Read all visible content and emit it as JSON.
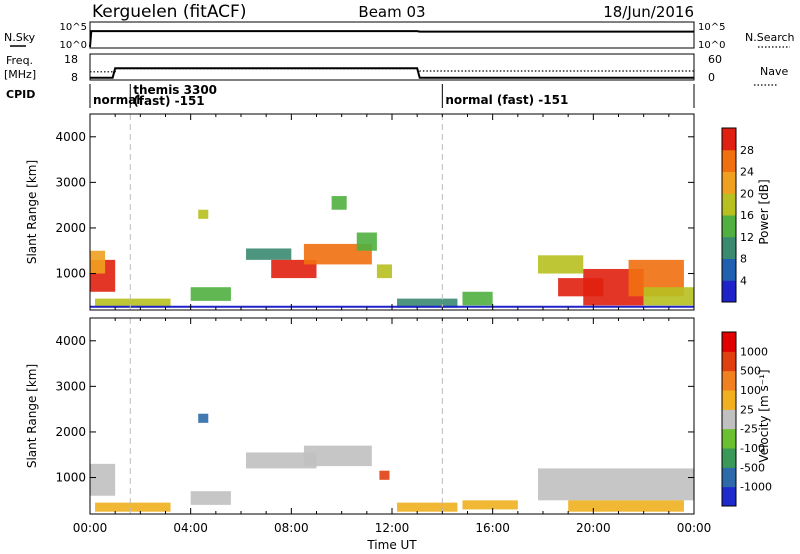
{
  "header": {
    "station": "Kerguelen (fitACF)",
    "beam": "Beam 03",
    "date": "18/Jun/2016"
  },
  "top_panels": {
    "nsky_label": "N.Sky",
    "nsky_ticks": [
      "10^5",
      "10^0"
    ],
    "nsearch_label": "N.Search",
    "nsearch_ticks": [
      "10^5",
      "10^0"
    ],
    "freq_label_line1": "Freq.",
    "freq_label_line2": "[MHz]",
    "freq_ticks": [
      "18",
      "8"
    ],
    "nave_label": "Nave",
    "nave_ticks": [
      "60",
      "0"
    ],
    "cpid_label": "CPID",
    "cpid_segments": [
      {
        "start_hour": 0.0,
        "lines": [
          "normal"
        ]
      },
      {
        "start_hour": 1.6,
        "lines": [
          "themis 3300",
          "(fast) -151"
        ]
      },
      {
        "start_hour": 14.0,
        "lines": [
          "normal (fast) -151"
        ]
      }
    ],
    "freq_series": [
      [
        0,
        8.5
      ],
      [
        0.9,
        8.5
      ],
      [
        1.0,
        12.5
      ],
      [
        13.0,
        12.5
      ],
      [
        13.1,
        8.5
      ],
      [
        24,
        8.5
      ]
    ],
    "nave_series": [
      [
        0,
        18
      ],
      [
        1.0,
        18
      ],
      [
        1.05,
        26
      ],
      [
        13.0,
        26
      ],
      [
        13.1,
        20
      ],
      [
        24,
        20
      ]
    ],
    "nsky_series": [
      [
        0,
        0.0
      ],
      [
        0.05,
        3.3
      ],
      [
        13.0,
        3.3
      ],
      [
        13.1,
        3.2
      ],
      [
        24,
        3.2
      ]
    ]
  },
  "chart_data": [
    {
      "type": "heatmap",
      "name": "power",
      "x_label": "",
      "y_label": "Slant Range [km]",
      "x_range": [
        0,
        24
      ],
      "y_range": [
        200,
        4500
      ],
      "y_ticks": [
        "1000",
        "2000",
        "3000",
        "4000"
      ],
      "colorbar_label": "Power [dB]",
      "colorbar_ticks": [
        "4",
        "8",
        "12",
        "16",
        "20",
        "24",
        "28"
      ],
      "colorbar_colors": [
        "#1e22c8",
        "#2060b0",
        "#3a8a70",
        "#50b040",
        "#b8c020",
        "#f0a020",
        "#f07010",
        "#e02010"
      ],
      "regions": [
        {
          "x": [
            0.0,
            1.0
          ],
          "y": [
            600,
            1300
          ],
          "level": 7
        },
        {
          "x": [
            0.0,
            0.6
          ],
          "y": [
            1000,
            1500
          ],
          "level": 5
        },
        {
          "x": [
            0.2,
            3.2
          ],
          "y": [
            250,
            450
          ],
          "level": 4
        },
        {
          "x": [
            4.0,
            5.6
          ],
          "y": [
            400,
            700
          ],
          "level": 3
        },
        {
          "x": [
            4.3,
            4.7
          ],
          "y": [
            2200,
            2400
          ],
          "level": 4
        },
        {
          "x": [
            6.2,
            8.0
          ],
          "y": [
            1300,
            1550
          ],
          "level": 2
        },
        {
          "x": [
            7.2,
            9.0
          ],
          "y": [
            900,
            1300
          ],
          "level": 7
        },
        {
          "x": [
            8.5,
            11.2
          ],
          "y": [
            1200,
            1650
          ],
          "level": 6
        },
        {
          "x": [
            10.6,
            11.4
          ],
          "y": [
            1500,
            1900
          ],
          "level": 3
        },
        {
          "x": [
            11.4,
            12.0
          ],
          "y": [
            900,
            1200
          ],
          "level": 4
        },
        {
          "x": [
            9.6,
            10.2
          ],
          "y": [
            2400,
            2700
          ],
          "level": 3
        },
        {
          "x": [
            12.2,
            14.6
          ],
          "y": [
            250,
            450
          ],
          "level": 2
        },
        {
          "x": [
            14.8,
            16.0
          ],
          "y": [
            300,
            600
          ],
          "level": 3
        },
        {
          "x": [
            17.8,
            19.6
          ],
          "y": [
            1000,
            1400
          ],
          "level": 4
        },
        {
          "x": [
            18.6,
            20.4
          ],
          "y": [
            500,
            900
          ],
          "level": 7
        },
        {
          "x": [
            19.6,
            22.0
          ],
          "y": [
            300,
            1100
          ],
          "level": 7
        },
        {
          "x": [
            21.4,
            23.6
          ],
          "y": [
            500,
            1300
          ],
          "level": 6
        },
        {
          "x": [
            22.0,
            24.0
          ],
          "y": [
            300,
            700
          ],
          "level": 4
        }
      ],
      "ground_line_km": 270
    },
    {
      "type": "heatmap",
      "name": "velocity",
      "x_label": "Time UT",
      "y_label": "Slant Range [km]",
      "x_range": [
        0,
        24
      ],
      "x_ticks": [
        "00:00",
        "04:00",
        "08:00",
        "12:00",
        "16:00",
        "20:00",
        "00:00"
      ],
      "y_range": [
        200,
        4500
      ],
      "y_ticks": [
        "1000",
        "2000",
        "3000",
        "4000"
      ],
      "colorbar_label": "Velocity [m s⁻¹]",
      "colorbar_ticks": [
        "1000",
        "500",
        "100",
        "25",
        "-25",
        "-100",
        "-500",
        "-1000"
      ],
      "colorbar_colors": [
        "#1e2acc",
        "#2e6aaa",
        "#3a9858",
        "#6ac030",
        "#c0c0c0",
        "#f0b020",
        "#f08020",
        "#e04010",
        "#e00000"
      ],
      "regions": [
        {
          "x": [
            0.0,
            1.0
          ],
          "y": [
            600,
            1300
          ],
          "level": 4
        },
        {
          "x": [
            0.2,
            3.2
          ],
          "y": [
            250,
            450
          ],
          "level": 5
        },
        {
          "x": [
            4.0,
            5.6
          ],
          "y": [
            400,
            700
          ],
          "level": 4
        },
        {
          "x": [
            4.3,
            4.7
          ],
          "y": [
            2200,
            2400
          ],
          "level": 1
        },
        {
          "x": [
            6.2,
            9.0
          ],
          "y": [
            1200,
            1550
          ],
          "level": 4
        },
        {
          "x": [
            8.5,
            11.2
          ],
          "y": [
            1250,
            1700
          ],
          "level": 4
        },
        {
          "x": [
            11.5,
            11.9
          ],
          "y": [
            950,
            1150
          ],
          "level": 7
        },
        {
          "x": [
            12.2,
            14.6
          ],
          "y": [
            250,
            450
          ],
          "level": 5
        },
        {
          "x": [
            14.8,
            17.0
          ],
          "y": [
            300,
            500
          ],
          "level": 5
        },
        {
          "x": [
            17.8,
            24.0
          ],
          "y": [
            500,
            1200
          ],
          "level": 4
        },
        {
          "x": [
            19.0,
            23.6
          ],
          "y": [
            250,
            500
          ],
          "level": 5
        }
      ]
    }
  ]
}
